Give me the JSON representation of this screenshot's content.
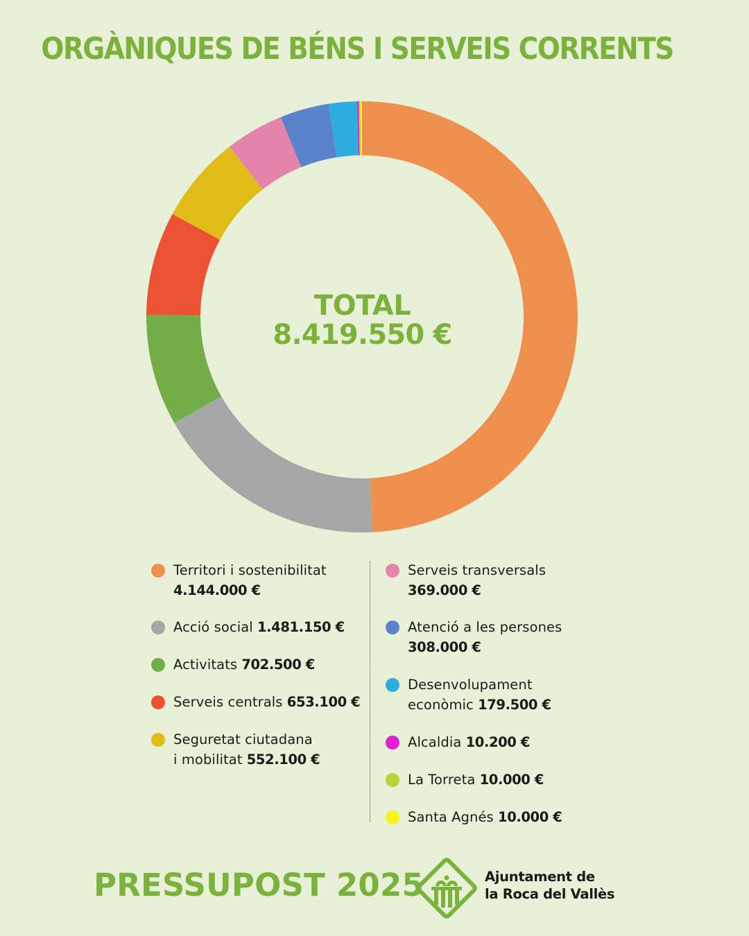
{
  "title": "ORGÀNIQUES DE BÉNS I SERVEIS CORRENTS",
  "center": {
    "line1": "TOTAL",
    "line2": "8.419.550 €"
  },
  "chart_data": {
    "type": "pie",
    "donut": true,
    "title": "ORGÀNIQUES DE BÉNS I SERVEIS CORRENTS",
    "total_label": "8.419.550 €",
    "categories": [
      "Territori i sostenibilitat",
      "Acció social",
      "Activitats",
      "Serveis centrals",
      "Seguretat ciutadana i mobilitat",
      "Serveis transversals",
      "Atenció a les persones",
      "Desenvolupament econòmic",
      "Alcaldia",
      "La Torreta",
      "Santa Agnés"
    ],
    "values": [
      4144000,
      1481150,
      702500,
      653100,
      552100,
      369000,
      308000,
      179500,
      10200,
      10000,
      10000
    ],
    "colors": [
      "#ef8f4d",
      "#a6a6a6",
      "#72ad47",
      "#eb5133",
      "#e0bc18",
      "#e584aa",
      "#5a83cc",
      "#2eaee0",
      "#e11fd7",
      "#b5d534",
      "#f6f21a"
    ]
  },
  "legend": {
    "left": [
      {
        "name": "Territori i sostenibilitat",
        "value": "4.144.000 €",
        "color": "#ef8f4d"
      },
      {
        "name": "Acció social",
        "value": "1.481.150 €",
        "color": "#a6a6a6"
      },
      {
        "name": "Activitats",
        "value": "702.500 €",
        "color": "#72ad47"
      },
      {
        "name": "Serveis centrals",
        "value": "653.100 €",
        "color": "#eb5133"
      },
      {
        "name": "Seguretat ciutadana",
        "name2": "i mobilitat",
        "value": "552.100 €",
        "color": "#e0bc18"
      }
    ],
    "right": [
      {
        "name": "Serveis transversals",
        "value": "369.000 €",
        "color": "#e584aa"
      },
      {
        "name": "Atenció a les persones",
        "value": "308.000 €",
        "color": "#5a83cc"
      },
      {
        "name": "Desenvolupament",
        "name2": "econòmic",
        "value": "179.500 €",
        "color": "#2eaee0"
      },
      {
        "name": "Alcaldia",
        "value": "10.200 €",
        "color": "#e11fd7"
      },
      {
        "name": "La Torreta",
        "value": "10.000 €",
        "color": "#b5d534"
      },
      {
        "name": "Santa Agnés",
        "value": "10.000 €",
        "color": "#f6f21a"
      }
    ]
  },
  "footer": {
    "title": "PRESSUPOST 2025",
    "org_line1": "Ajuntament de",
    "org_line2": "la Roca del Vallès"
  }
}
